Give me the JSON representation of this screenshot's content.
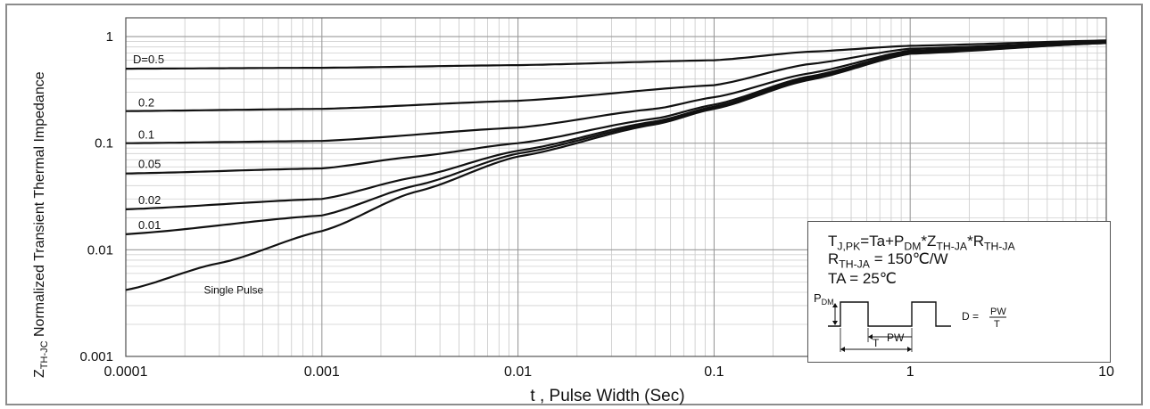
{
  "chart_data": {
    "type": "line",
    "title": "",
    "xlabel": "t , Pulse Width (Sec)",
    "ylabel": {
      "z": "Z",
      "sub": "TH-JC",
      "text": " Normalized Transient Thermal Impedance"
    },
    "x_scale": "log",
    "y_scale": "log",
    "xlim": [
      0.0001,
      10
    ],
    "ylim": [
      0.001,
      1.5
    ],
    "x_ticks": [
      0.0001,
      0.001,
      0.01,
      0.1,
      1,
      10
    ],
    "x_tick_labels": [
      "0.0001",
      "0.001",
      "0.01",
      "0.1",
      "1",
      "10"
    ],
    "y_ticks": [
      0.001,
      0.01,
      0.1,
      1
    ],
    "y_tick_labels": [
      "0.001",
      "0.01",
      "0.1",
      "1"
    ],
    "grid": true,
    "series": [
      {
        "name": "D=0.5",
        "x": [
          0.0001,
          0.001,
          0.01,
          0.1,
          0.3,
          1,
          10
        ],
        "y": [
          0.5,
          0.51,
          0.54,
          0.6,
          0.72,
          0.82,
          0.92
        ]
      },
      {
        "name": "0.2",
        "x": [
          0.0001,
          0.001,
          0.01,
          0.1,
          0.3,
          1,
          10
        ],
        "y": [
          0.2,
          0.21,
          0.25,
          0.35,
          0.55,
          0.77,
          0.9
        ]
      },
      {
        "name": "0.1",
        "x": [
          0.0001,
          0.001,
          0.01,
          0.05,
          0.1,
          0.3,
          1,
          10
        ],
        "y": [
          0.1,
          0.105,
          0.14,
          0.21,
          0.27,
          0.45,
          0.74,
          0.89
        ]
      },
      {
        "name": "0.05",
        "x": [
          0.0001,
          0.001,
          0.003,
          0.01,
          0.05,
          0.1,
          0.3,
          1,
          10
        ],
        "y": [
          0.052,
          0.058,
          0.075,
          0.1,
          0.17,
          0.23,
          0.42,
          0.72,
          0.88
        ]
      },
      {
        "name": "0.02",
        "x": [
          0.0001,
          0.001,
          0.003,
          0.01,
          0.05,
          0.1,
          0.3,
          1,
          10
        ],
        "y": [
          0.024,
          0.03,
          0.048,
          0.085,
          0.16,
          0.22,
          0.41,
          0.71,
          0.88
        ]
      },
      {
        "name": "0.01",
        "x": [
          0.0001,
          0.001,
          0.003,
          0.01,
          0.05,
          0.1,
          0.3,
          1,
          10
        ],
        "y": [
          0.014,
          0.021,
          0.04,
          0.08,
          0.155,
          0.215,
          0.4,
          0.7,
          0.87
        ]
      },
      {
        "name": "Single Pulse",
        "x": [
          0.0001,
          0.0003,
          0.001,
          0.003,
          0.01,
          0.05,
          0.1,
          0.3,
          1,
          10
        ],
        "y": [
          0.0042,
          0.0075,
          0.015,
          0.035,
          0.075,
          0.15,
          0.21,
          0.39,
          0.69,
          0.87
        ]
      }
    ],
    "annotation": {
      "line1": {
        "t": "T",
        "t_sub": "J,PK",
        "mid1": "=Ta+P",
        "p_sub": "DM",
        "mid2": "*Z",
        "z_sub": "TH-JA",
        "mid3": "*R",
        "r_sub": "TH-JA"
      },
      "line2": {
        "r": "R",
        "r_sub": "TH-JA",
        "rest": "= 150℃/W"
      },
      "line3": "TA = 25℃",
      "pulse_diagram": {
        "pdm": "P",
        "pdm_sub": "DM",
        "pw": "PW",
        "t": "T",
        "d_eq": "D =",
        "d_num": "PW",
        "d_den": "T"
      }
    }
  }
}
